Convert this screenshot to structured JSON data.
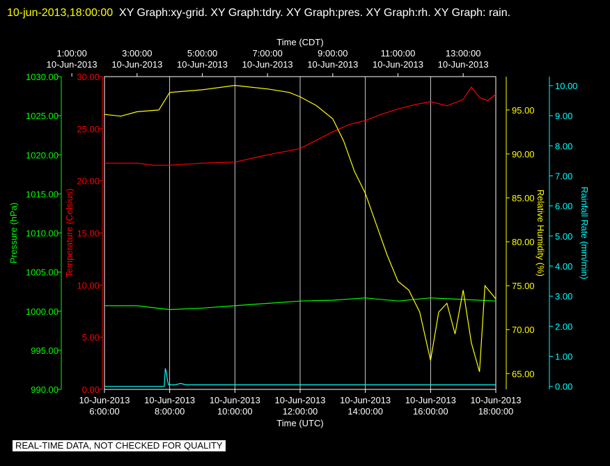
{
  "header": {
    "timestamp": "10-jun-2013,18:00:00",
    "description": "XY Graph:xy-grid.  XY Graph:tdry.  XY Graph:pres.  XY Graph:rh.  XY Graph: rain."
  },
  "quality_notice": "REAL-TIME DATA, NOT CHECKED FOR QUALITY",
  "colors": {
    "background": "#000000",
    "grid": "#ffffff",
    "temperature": "#ff0000",
    "pressure": "#00ff00",
    "humidity": "#ffff00",
    "rainfall": "#00ffff",
    "axis_text": "#ffffff"
  },
  "chart_data": {
    "type": "line",
    "grid": true,
    "x_axis_bottom": {
      "label": "Time (UTC)",
      "range": [
        "2013-06-10 06:00",
        "2013-06-10 18:00"
      ],
      "ticks": [
        {
          "date": "10-Jun-2013",
          "time": "6:00:00"
        },
        {
          "date": "10-Jun-2013",
          "time": "8:00:00"
        },
        {
          "date": "10-Jun-2013",
          "time": "10:00:00"
        },
        {
          "date": "10-Jun-2013",
          "time": "12:00:00"
        },
        {
          "date": "10-Jun-2013",
          "time": "14:00:00"
        },
        {
          "date": "10-Jun-2013",
          "time": "16:00:00"
        },
        {
          "date": "10-Jun-2013",
          "time": "18:00:00"
        }
      ]
    },
    "x_axis_top": {
      "label": "Time (CDT)",
      "ticks": [
        {
          "time": "1:00:00",
          "date": "10-Jun-2013"
        },
        {
          "time": "3:00:00",
          "date": "10-Jun-2013"
        },
        {
          "time": "5:00:00",
          "date": "10-Jun-2013"
        },
        {
          "time": "7:00:00",
          "date": "10-Jun-2013"
        },
        {
          "time": "9:00:00",
          "date": "10-Jun-2013"
        },
        {
          "time": "11:00:00",
          "date": "10-Jun-2013"
        },
        {
          "time": "13:00:00",
          "date": "10-Jun-2013"
        }
      ]
    },
    "y_axes": {
      "pressure": {
        "label": "Pressure (hPa)",
        "range": [
          990,
          1030
        ],
        "ticks": [
          "990.00",
          "995.00",
          "1000.00",
          "1005.00",
          "1010.00",
          "1015.00",
          "1020.00",
          "1025.00",
          "1030.00"
        ]
      },
      "temperature": {
        "label": "Temperature (Celsius)",
        "range": [
          0,
          30
        ],
        "ticks": [
          "0.00",
          "5.00",
          "10.00",
          "15.00",
          "20.00",
          "25.00",
          "30.00"
        ]
      },
      "humidity": {
        "label": "Relative Humidity (%)",
        "range": [
          63.2,
          98.8
        ],
        "ticks": [
          "65.00",
          "70.00",
          "75.00",
          "80.00",
          "85.00",
          "90.00",
          "95.00"
        ]
      },
      "rainfall": {
        "label": "Rainfall Rate (mm/min)",
        "range": [
          -0.1,
          10.3
        ],
        "ticks": [
          "0.00",
          "1.00",
          "2.00",
          "3.00",
          "4.00",
          "5.00",
          "6.00",
          "7.00",
          "8.00",
          "9.00",
          "10.00"
        ]
      }
    },
    "series": [
      {
        "key": "temperature",
        "points": [
          [
            "2013-06-10 06:00",
            21.7
          ],
          [
            "2013-06-10 07:00",
            21.7
          ],
          [
            "2013-06-10 07:30",
            21.5
          ],
          [
            "2013-06-10 08:00",
            21.5
          ],
          [
            "2013-06-10 09:00",
            21.7
          ],
          [
            "2013-06-10 10:00",
            21.8
          ],
          [
            "2013-06-10 11:00",
            22.5
          ],
          [
            "2013-06-10 12:00",
            23.1
          ],
          [
            "2013-06-10 12:30",
            23.9
          ],
          [
            "2013-06-10 13:00",
            24.7
          ],
          [
            "2013-06-10 13:30",
            25.4
          ],
          [
            "2013-06-10 14:00",
            25.8
          ],
          [
            "2013-06-10 14:30",
            26.4
          ],
          [
            "2013-06-10 15:00",
            26.9
          ],
          [
            "2013-06-10 15:30",
            27.3
          ],
          [
            "2013-06-10 16:00",
            27.6
          ],
          [
            "2013-06-10 16:30",
            27.2
          ],
          [
            "2013-06-10 17:00",
            27.8
          ],
          [
            "2013-06-10 17:15",
            29.0
          ],
          [
            "2013-06-10 17:30",
            28.0
          ],
          [
            "2013-06-10 17:45",
            27.7
          ],
          [
            "2013-06-10 18:00",
            28.3
          ]
        ]
      },
      {
        "key": "pressure",
        "points": [
          [
            "2013-06-10 06:00",
            1000.7
          ],
          [
            "2013-06-10 07:00",
            1000.7
          ],
          [
            "2013-06-10 08:00",
            1000.2
          ],
          [
            "2013-06-10 09:00",
            1000.4
          ],
          [
            "2013-06-10 10:00",
            1000.7
          ],
          [
            "2013-06-10 11:00",
            1001.0
          ],
          [
            "2013-06-10 12:00",
            1001.3
          ],
          [
            "2013-06-10 13:00",
            1001.4
          ],
          [
            "2013-06-10 14:00",
            1001.7
          ],
          [
            "2013-06-10 15:00",
            1001.3
          ],
          [
            "2013-06-10 16:00",
            1001.7
          ],
          [
            "2013-06-10 17:00",
            1001.5
          ],
          [
            "2013-06-10 18:00",
            1001.3
          ]
        ]
      },
      {
        "key": "humidity",
        "points": [
          [
            "2013-06-10 06:00",
            94.5
          ],
          [
            "2013-06-10 06:30",
            94.3
          ],
          [
            "2013-06-10 07:00",
            94.8
          ],
          [
            "2013-06-10 07:40",
            95.0
          ],
          [
            "2013-06-10 08:00",
            97.0
          ],
          [
            "2013-06-10 09:00",
            97.3
          ],
          [
            "2013-06-10 10:00",
            97.8
          ],
          [
            "2013-06-10 11:00",
            97.4
          ],
          [
            "2013-06-10 11:40",
            97.0
          ],
          [
            "2013-06-10 12:00",
            96.5
          ],
          [
            "2013-06-10 12:30",
            95.5
          ],
          [
            "2013-06-10 13:00",
            94.0
          ],
          [
            "2013-06-10 13:20",
            91.5
          ],
          [
            "2013-06-10 13:40",
            88.0
          ],
          [
            "2013-06-10 14:00",
            85.5
          ],
          [
            "2013-06-10 14:20",
            82.0
          ],
          [
            "2013-06-10 14:40",
            78.5
          ],
          [
            "2013-06-10 15:00",
            75.5
          ],
          [
            "2013-06-10 15:20",
            74.5
          ],
          [
            "2013-06-10 15:40",
            72.0
          ],
          [
            "2013-06-10 16:00",
            66.5
          ],
          [
            "2013-06-10 16:15",
            72.0
          ],
          [
            "2013-06-10 16:30",
            73.0
          ],
          [
            "2013-06-10 16:45",
            69.5
          ],
          [
            "2013-06-10 17:00",
            74.5
          ],
          [
            "2013-06-10 17:15",
            68.5
          ],
          [
            "2013-06-10 17:30",
            65.2
          ],
          [
            "2013-06-10 17:40",
            75.0
          ],
          [
            "2013-06-10 18:00",
            73.5
          ]
        ]
      },
      {
        "key": "rainfall",
        "points": [
          [
            "2013-06-10 06:00",
            0.0
          ],
          [
            "2013-06-10 07:50",
            0.0
          ],
          [
            "2013-06-10 07:52",
            0.6
          ],
          [
            "2013-06-10 07:54",
            0.45
          ],
          [
            "2013-06-10 07:56",
            0.2
          ],
          [
            "2013-06-10 07:58",
            0.05
          ],
          [
            "2013-06-10 08:10",
            0.05
          ],
          [
            "2013-06-10 08:20",
            0.1
          ],
          [
            "2013-06-10 08:30",
            0.05
          ],
          [
            "2013-06-10 18:00",
            0.05
          ]
        ]
      }
    ]
  }
}
